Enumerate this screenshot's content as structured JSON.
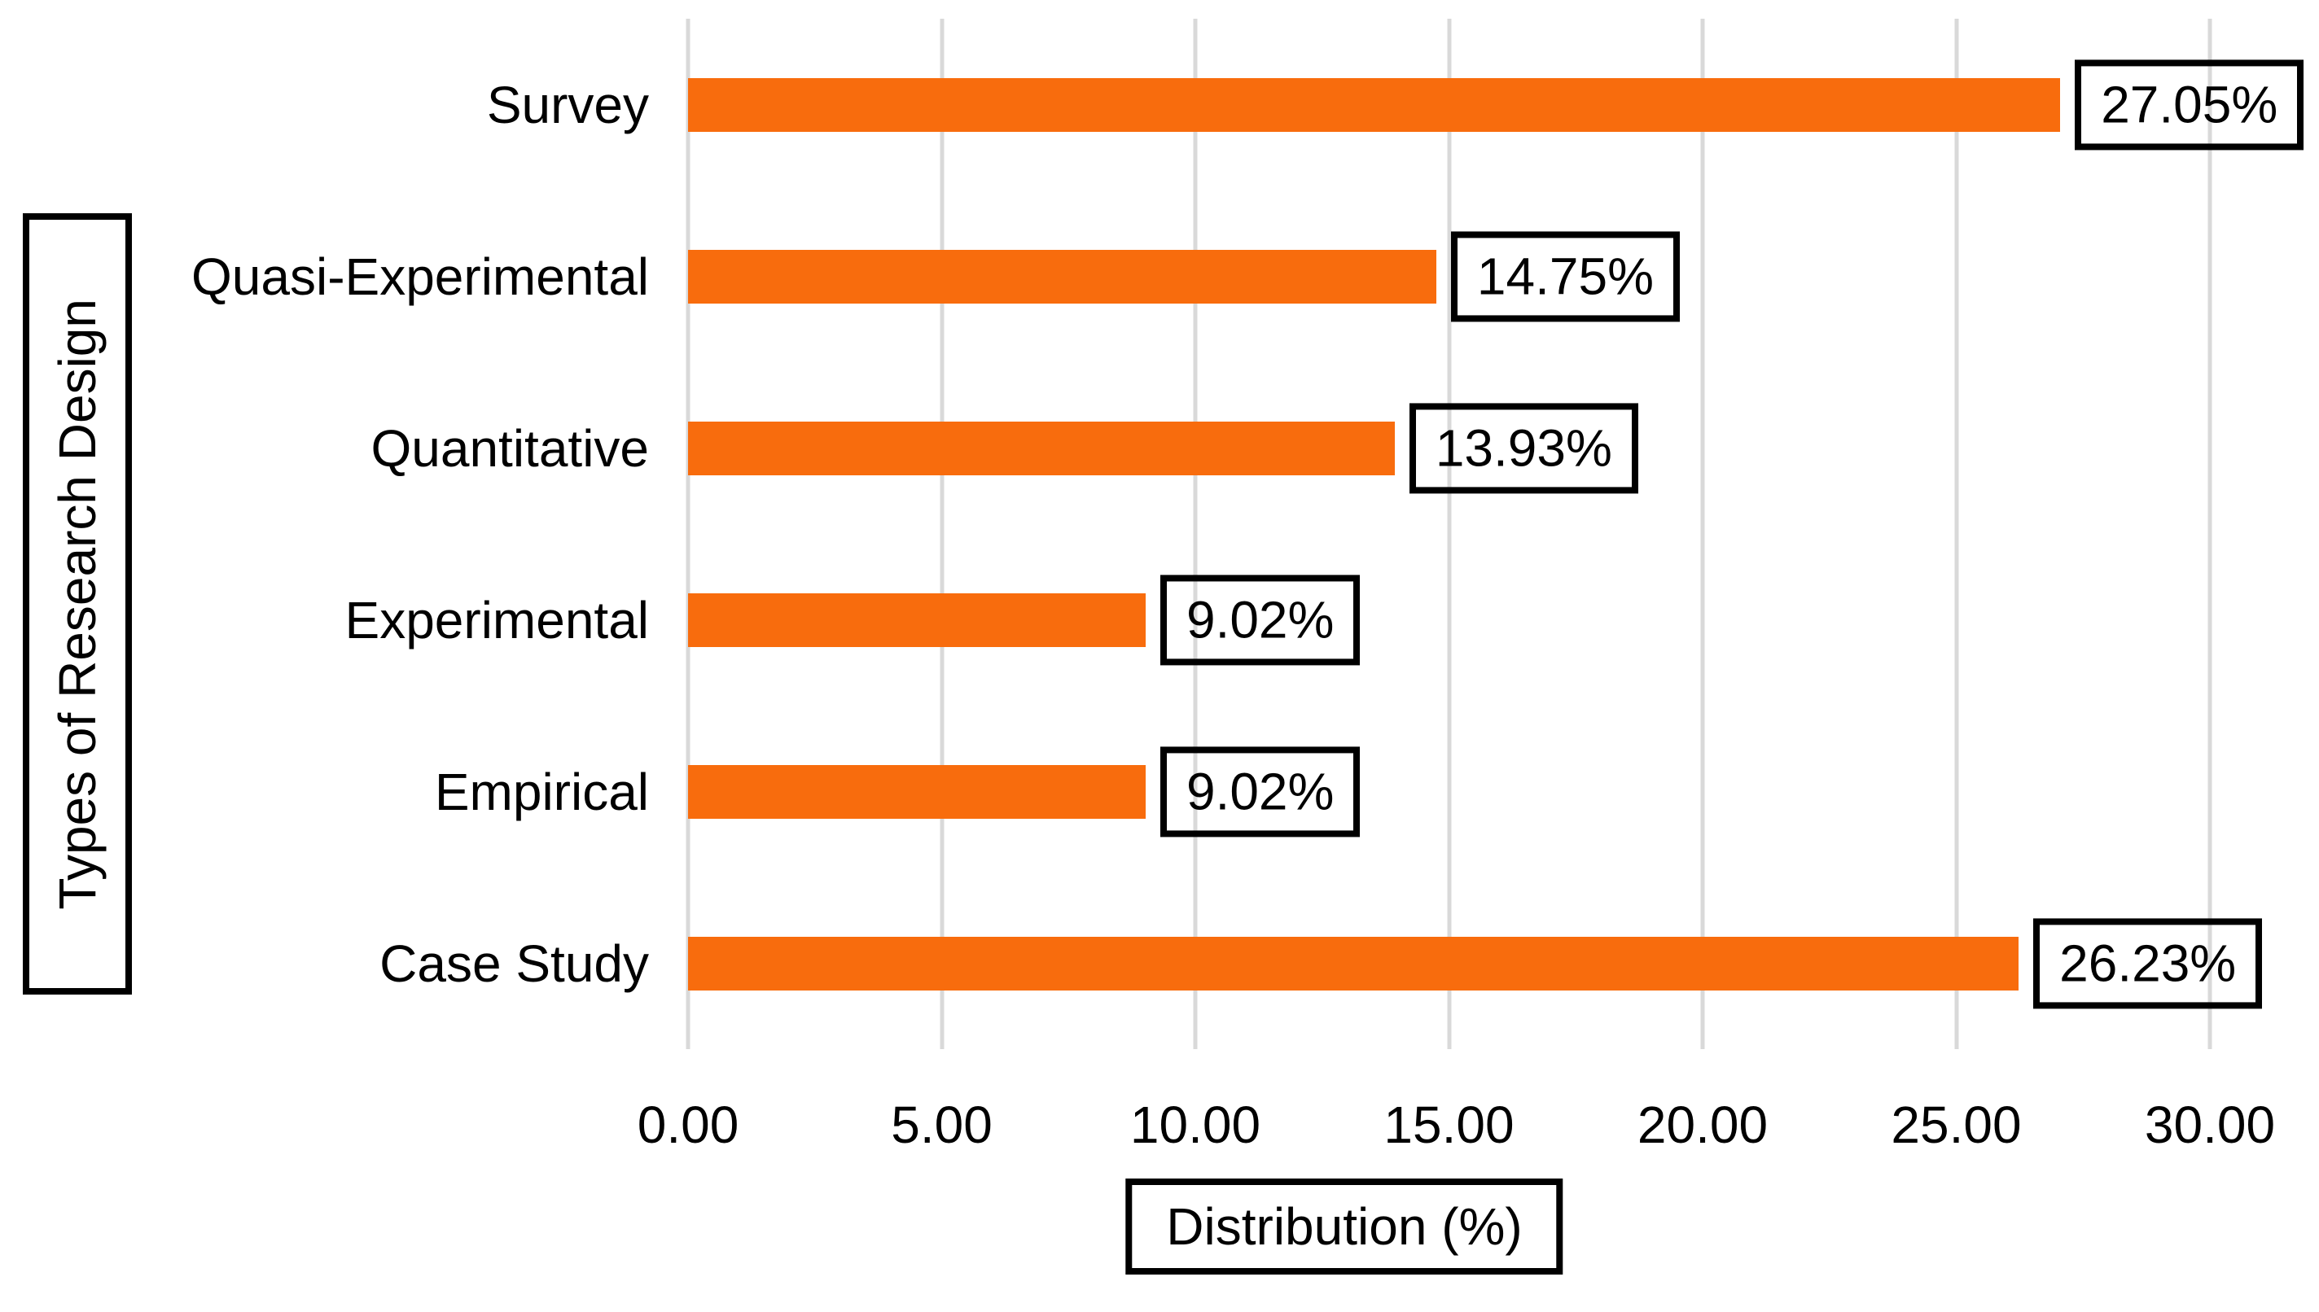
{
  "chart_data": {
    "type": "bar",
    "orientation": "horizontal",
    "title": "",
    "xlabel": "Distribution (%)",
    "ylabel": "Types of Research Design",
    "categories": [
      "Survey",
      "Quasi-Experimental",
      "Quantitative",
      "Experimental",
      "Empirical",
      "Case Study"
    ],
    "values": [
      27.05,
      14.75,
      13.93,
      9.02,
      9.02,
      26.23
    ],
    "value_labels": [
      "27.05%",
      "14.75%",
      "13.93%",
      "9.02%",
      "9.02%",
      "26.23%"
    ],
    "x_ticks": [
      "0.00",
      "5.00",
      "10.00",
      "15.00",
      "20.00",
      "25.00",
      "30.00"
    ],
    "x_tick_values": [
      0,
      5,
      10,
      15,
      20,
      25,
      30
    ],
    "xlim": [
      0,
      30.9
    ],
    "grid": "vertical",
    "legend": "none",
    "bar_color": "#F86C0D",
    "gridline_color": "#D9D9D9",
    "text_color": "#000000",
    "data_label_border_color": "#000000"
  }
}
